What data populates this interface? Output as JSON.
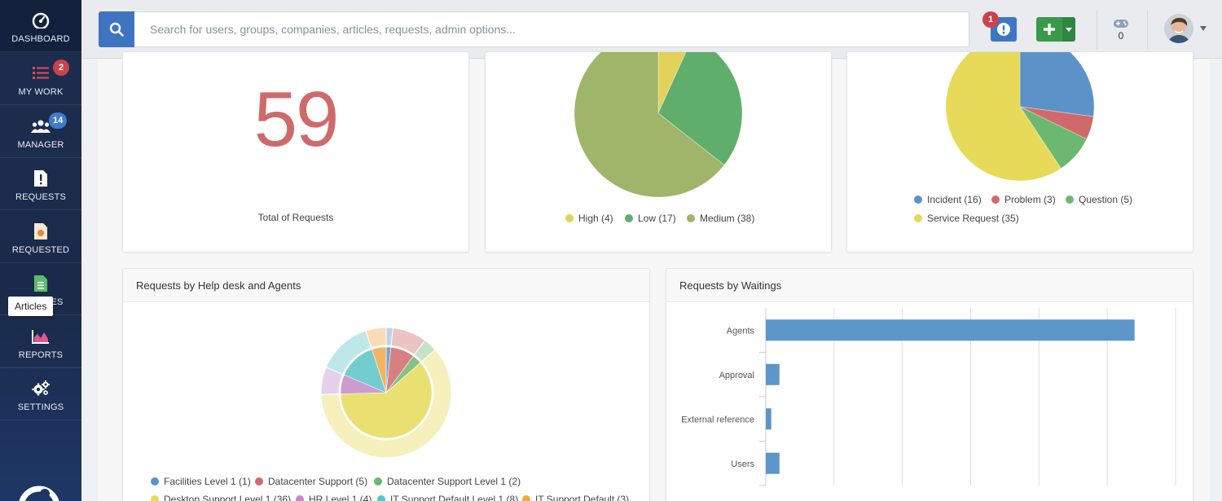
{
  "sidebar": {
    "items": [
      {
        "label": "DASHBOARD",
        "icon": "dashboard-gauge-icon"
      },
      {
        "label": "MY WORK",
        "icon": "list-icon",
        "badge": "2"
      },
      {
        "label": "MANAGER",
        "icon": "users-group-icon",
        "badge": "14"
      },
      {
        "label": "REQUESTS",
        "icon": "request-alert-icon"
      },
      {
        "label": "REQUESTED",
        "icon": "requested-file-icon"
      },
      {
        "label": "ARTICLES",
        "icon": "article-document-icon"
      },
      {
        "label": "REPORTS",
        "icon": "area-chart-icon"
      },
      {
        "label": "SETTINGS",
        "icon": "gears-icon"
      }
    ],
    "tooltip": "Articles"
  },
  "topbar": {
    "search_placeholder": "Search for users, groups, companies, articles, requests, admin options...",
    "alert_badge": "1",
    "game_count": "0"
  },
  "colors": {
    "primary_blue": "#3f74c0",
    "add_green": "#3a9a4c",
    "badge_red": "#c9434a",
    "total_red": "#cf6a6a"
  },
  "cards": {
    "total": {
      "value": "59",
      "label": "Total of Requests"
    },
    "priority": {
      "legend": [
        {
          "label": "High (4)",
          "color": "#e2d25a"
        },
        {
          "label": "Low (17)",
          "color": "#5fae6b"
        },
        {
          "label": "Medium (38)",
          "color": "#9fb56a"
        }
      ]
    },
    "types": {
      "legend": [
        {
          "label": "Incident (16)",
          "color": "#5b93c9"
        },
        {
          "label": "Problem (3)",
          "color": "#d06a6a"
        },
        {
          "label": "Question (5)",
          "color": "#6db870"
        },
        {
          "label": "Service Request (35)",
          "color": "#e6da58"
        }
      ]
    },
    "helpdesk": {
      "title": "Requests by Help desk and Agents",
      "legend": [
        {
          "label": "Facilities Level 1 (1)",
          "color": "#5b93c9"
        },
        {
          "label": "Datacenter Support (5)",
          "color": "#d06a6a"
        },
        {
          "label": "Datacenter Support Level 1 (2)",
          "color": "#6db870"
        },
        {
          "label": "Desktop Support Level 1 (36)",
          "color": "#e6da58"
        },
        {
          "label": "HR Level 1 (4)",
          "color": "#c389c8"
        },
        {
          "label": "IT Support Default Level 1 (8)",
          "color": "#5ac3c6"
        },
        {
          "label": "IT Support Default (3)",
          "color": "#f0a849"
        }
      ]
    },
    "waitings": {
      "title": "Requests by Waitings"
    }
  },
  "chart_data": [
    {
      "type": "pie",
      "categories": [
        "High",
        "Low",
        "Medium"
      ],
      "values": [
        4,
        17,
        38
      ],
      "colors": [
        "#e2d25a",
        "#5fae6b",
        "#9fb56a"
      ]
    },
    {
      "type": "pie",
      "categories": [
        "Incident",
        "Problem",
        "Question",
        "Service Request"
      ],
      "values": [
        16,
        3,
        5,
        35
      ],
      "colors": [
        "#5b93c9",
        "#d06a6a",
        "#6db870",
        "#e6da58"
      ]
    },
    {
      "type": "pie",
      "title": "Requests by Help desk and Agents",
      "categories": [
        "Facilities Level 1",
        "Datacenter Support",
        "Datacenter Support Level 1",
        "Desktop Support Level 1",
        "HR Level 1",
        "IT Support Default Level 1",
        "IT Support Default"
      ],
      "values": [
        1,
        5,
        2,
        36,
        4,
        8,
        3
      ],
      "colors": [
        "#5b93c9",
        "#d06a6a",
        "#6db870",
        "#e6da58",
        "#c389c8",
        "#5ac3c6",
        "#f0a849"
      ]
    },
    {
      "type": "bar",
      "orientation": "horizontal",
      "title": "Requests by Waitings",
      "categories": [
        "Agents",
        "Approval",
        "External reference",
        "Users"
      ],
      "values": [
        27,
        1,
        0.4,
        1
      ],
      "xlim": [
        0,
        30
      ],
      "grid": true
    }
  ]
}
